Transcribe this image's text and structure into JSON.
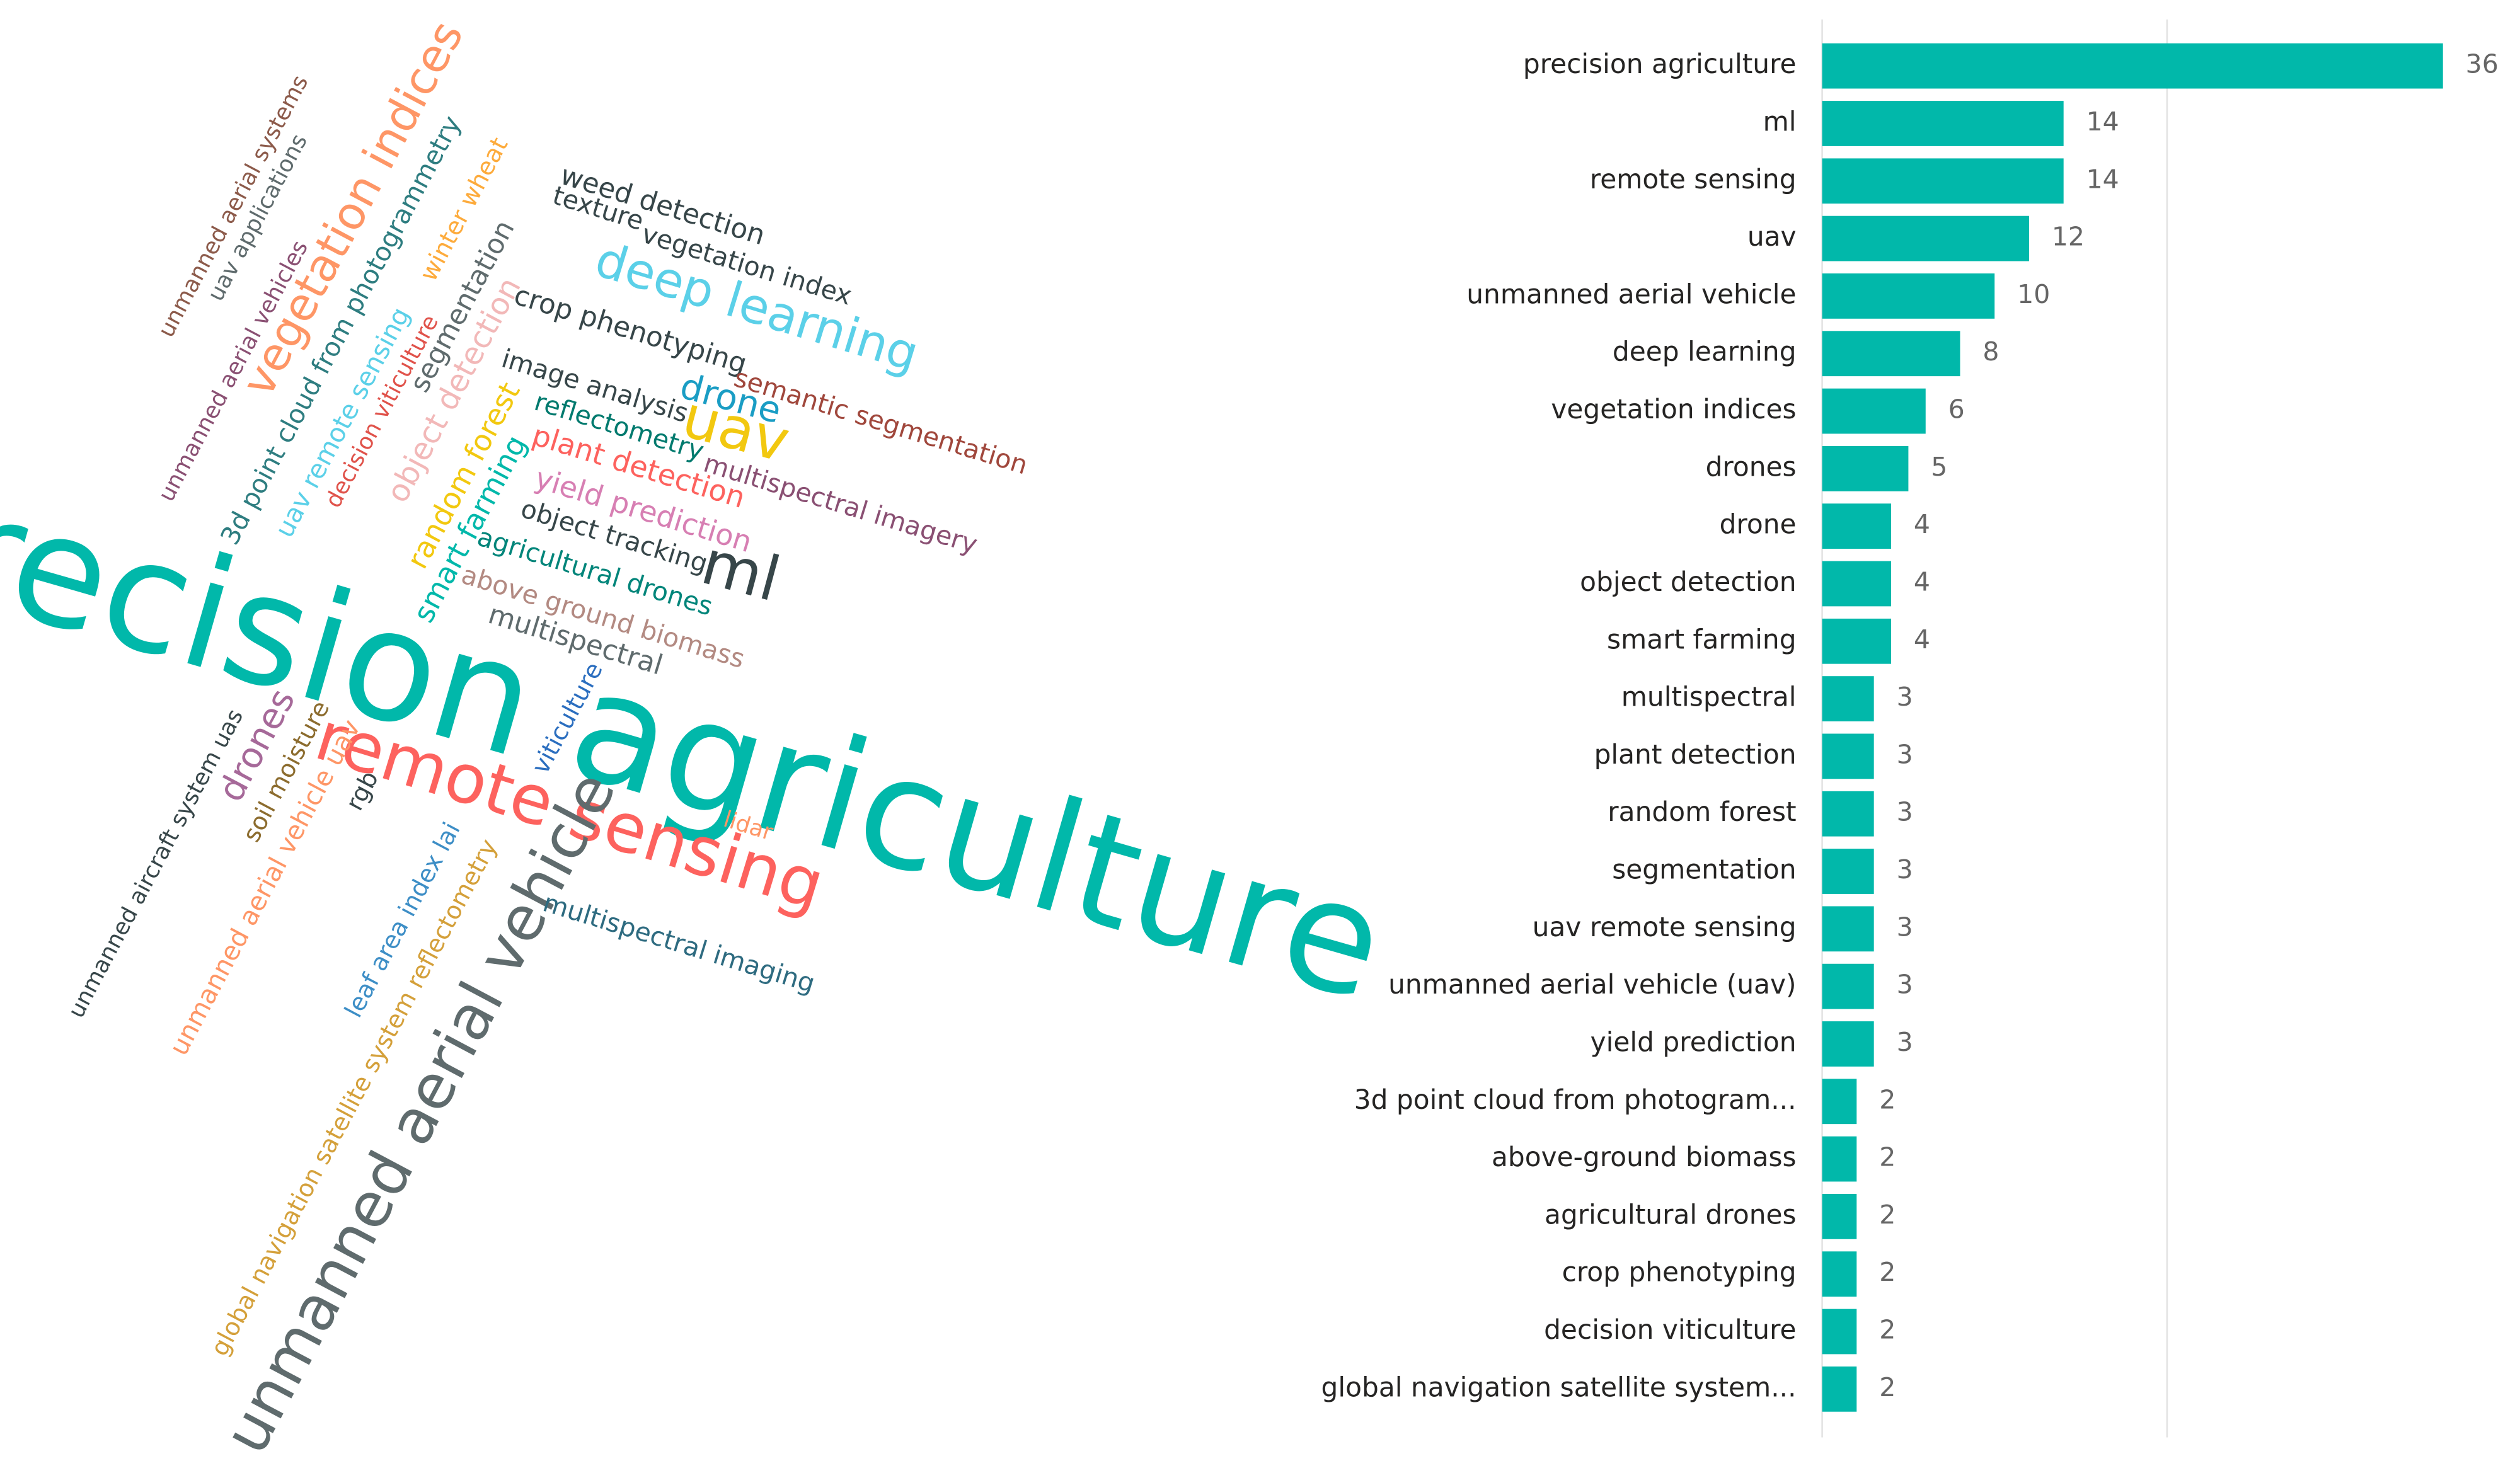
{
  "chart_data": [
    {
      "type": "wordcloud",
      "words": [
        {
          "text": "precision agriculture",
          "color": "#01b8aa"
        },
        {
          "text": "remote sensing",
          "color": "#fd625e"
        },
        {
          "text": "unmanned aerial vehicle",
          "color": "#5f6b6d"
        },
        {
          "text": "uav",
          "color": "#f2c80f"
        },
        {
          "text": "ml",
          "color": "#374649"
        },
        {
          "text": "deep learning",
          "color": "#5bd0e8"
        },
        {
          "text": "vegetation indices",
          "color": "#fe9666"
        },
        {
          "text": "drones",
          "color": "#a66999"
        },
        {
          "text": "drone",
          "color": "#1a9dc4"
        },
        {
          "text": "weed detection",
          "color": "#374649"
        },
        {
          "text": "texture",
          "color": "#374649"
        },
        {
          "text": "vegetation index",
          "color": "#374649"
        },
        {
          "text": "crop phenotyping",
          "color": "#374649"
        },
        {
          "text": "semantic segmentation",
          "color": "#a0473c"
        },
        {
          "text": "image analysis",
          "color": "#374649"
        },
        {
          "text": "reflectometry",
          "color": "#007a6e"
        },
        {
          "text": "plant detection",
          "color": "#fd625e"
        },
        {
          "text": "multispectral imagery",
          "color": "#8a5073"
        },
        {
          "text": "yield prediction",
          "color": "#d77fb3"
        },
        {
          "text": "object tracking",
          "color": "#374649"
        },
        {
          "text": "agricultural drones",
          "color": "#01857a"
        },
        {
          "text": "above ground biomass",
          "color": "#b38a82"
        },
        {
          "text": "multispectral",
          "color": "#5f6b6d"
        },
        {
          "text": "viticulture",
          "color": "#2b6ebf"
        },
        {
          "text": "lidar",
          "color": "#fe9666"
        },
        {
          "text": "multispectral imaging",
          "color": "#2e6b80"
        },
        {
          "text": "unmanned aerial systems",
          "color": "#8c5a4a"
        },
        {
          "text": "uav applications",
          "color": "#5f6b6d"
        },
        {
          "text": "unmanned aerial vehicles",
          "color": "#8a5073"
        },
        {
          "text": "3d point cloud from photogrammetry",
          "color": "#2e7d80"
        },
        {
          "text": "winter wheat",
          "color": "#fdab3c"
        },
        {
          "text": "uav remote sensing",
          "color": "#5bd0e8"
        },
        {
          "text": "segmentation",
          "color": "#5f6b6d"
        },
        {
          "text": "decision viticulture",
          "color": "#e0524a"
        },
        {
          "text": "object detection",
          "color": "#f2b8b8"
        },
        {
          "text": "random forest",
          "color": "#f2c80f"
        },
        {
          "text": "smart farming",
          "color": "#01b8aa"
        },
        {
          "text": "unmanned aircraft system uas",
          "color": "#374649"
        },
        {
          "text": "soil moisture",
          "color": "#8c6c2e"
        },
        {
          "text": "unmanned aerial vehicle uav",
          "color": "#fe9666"
        },
        {
          "text": "rgb",
          "color": "#374649"
        },
        {
          "text": "leaf area index lai",
          "color": "#3d8ec6"
        },
        {
          "text": "global navigation satellite system reflectometry",
          "color": "#d4a03a"
        }
      ]
    },
    {
      "type": "hbar",
      "categories": [
        "precision agriculture",
        "ml",
        "remote sensing",
        "uav",
        "unmanned aerial vehicle",
        "deep learning",
        "vegetation indices",
        "drones",
        "drone",
        "object detection",
        "smart farming",
        "multispectral",
        "plant detection",
        "random forest",
        "segmentation",
        "uav remote sensing",
        "unmanned aerial vehicle (uav)",
        "yield prediction",
        "3d point cloud from photogram...",
        "above-ground biomass",
        "agricultural drones",
        "crop phenotyping",
        "decision viticulture",
        "global navigation satellite system..."
      ],
      "values": [
        36,
        14,
        14,
        12,
        10,
        8,
        6,
        5,
        4,
        4,
        4,
        3,
        3,
        3,
        3,
        3,
        3,
        3,
        2,
        2,
        2,
        2,
        2,
        2
      ],
      "color": "#01b8aa",
      "xlim": [
        0,
        40
      ],
      "xticks": [
        0,
        20
      ],
      "show_tick_labels": false
    }
  ]
}
